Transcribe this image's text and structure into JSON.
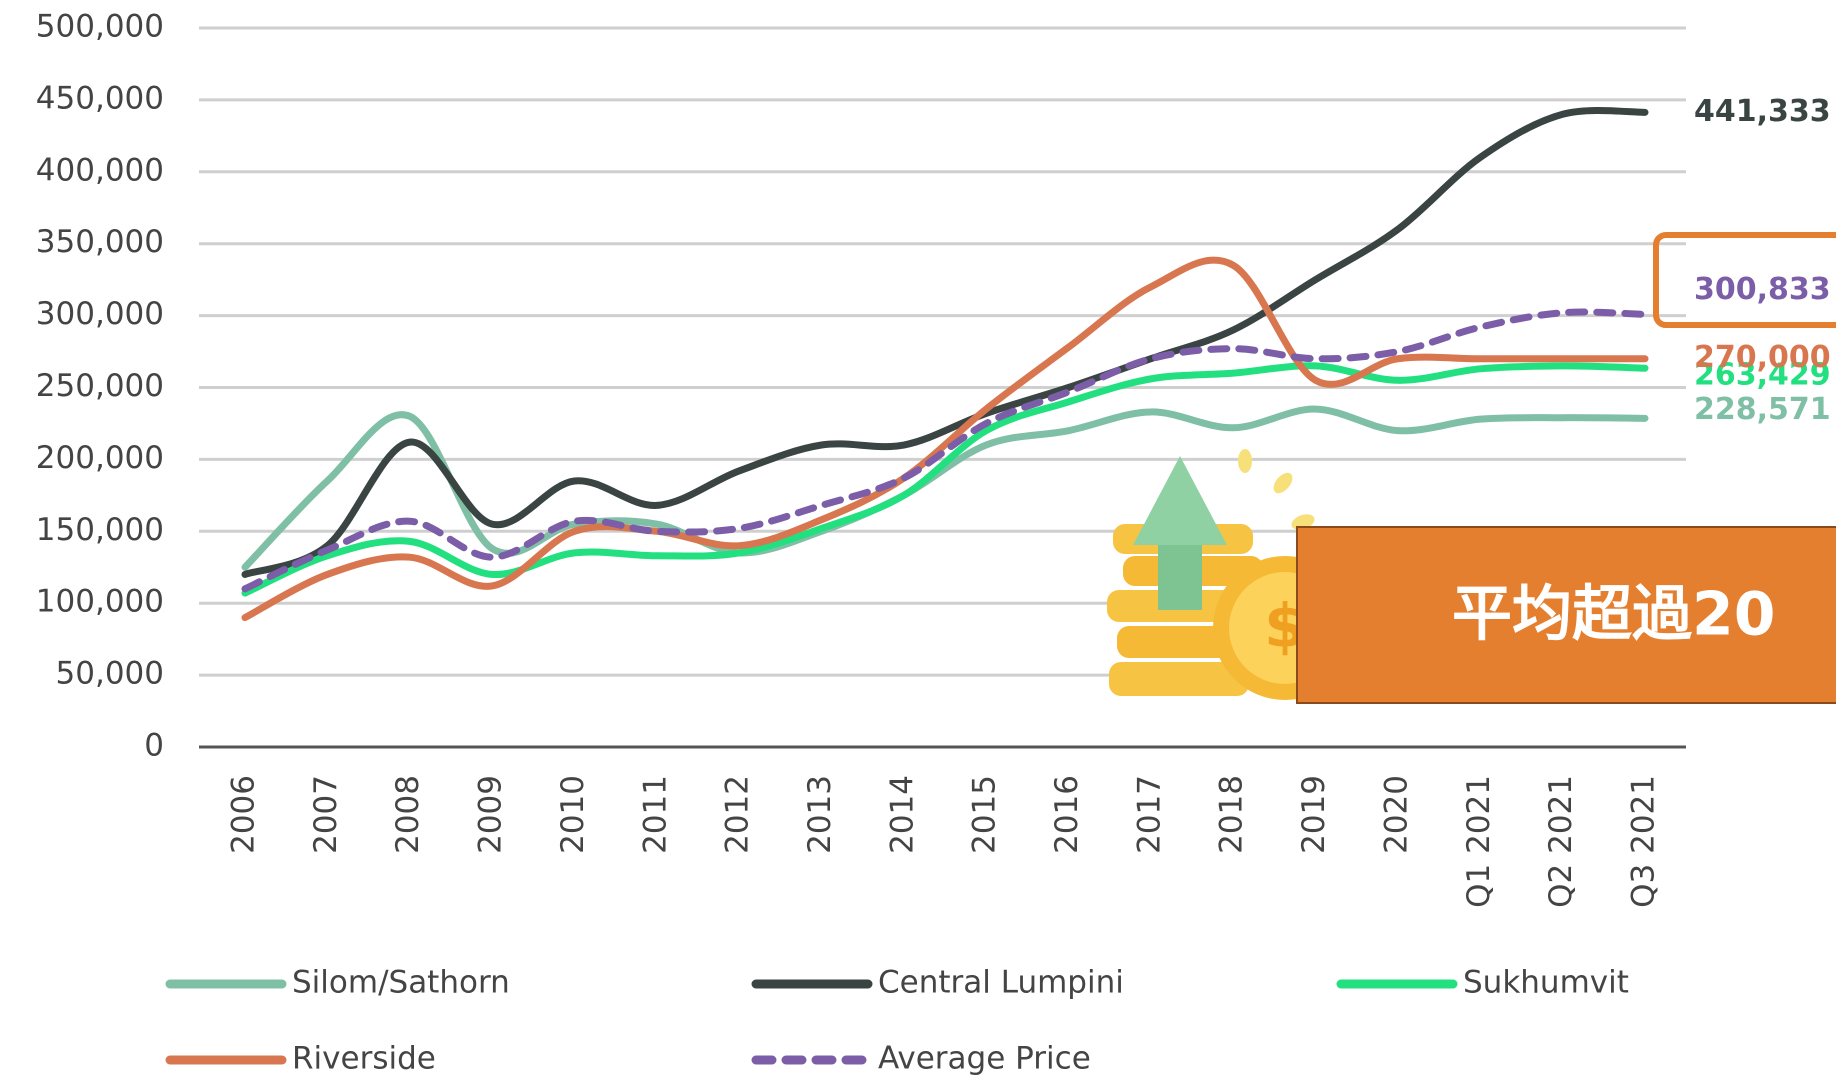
{
  "chart_data": {
    "type": "line",
    "categories": [
      "2006",
      "2007",
      "2008",
      "2009",
      "2010",
      "2011",
      "2012",
      "2013",
      "2014",
      "2015",
      "2016",
      "2017",
      "2018",
      "2019",
      "2020",
      "Q1 2021",
      "Q2 2021",
      "Q3 2021"
    ],
    "series": [
      {
        "name": "Silom/Sathorn",
        "color": "#7fbfa6",
        "values": [
          125000,
          185000,
          230000,
          138000,
          155000,
          155000,
          135000,
          150000,
          175000,
          210000,
          220000,
          233000,
          222000,
          235000,
          220000,
          228000,
          229000,
          228571
        ],
        "value_labels": [
          null,
          null,
          null,
          null,
          null,
          null,
          null,
          null,
          null,
          null,
          null,
          null,
          null,
          null,
          null,
          null,
          null,
          "228,571"
        ]
      },
      {
        "name": "Central Lumpini",
        "color": "#3a4442",
        "values": [
          120000,
          140000,
          212000,
          155000,
          185000,
          168000,
          192000,
          210000,
          210000,
          232000,
          250000,
          270000,
          290000,
          325000,
          360000,
          410000,
          440000,
          441333
        ],
        "value_labels": [
          null,
          null,
          null,
          null,
          null,
          null,
          null,
          null,
          null,
          null,
          null,
          null,
          null,
          null,
          null,
          null,
          null,
          "441,333"
        ]
      },
      {
        "name": "Sukhumvit",
        "color": "#22e07f",
        "values": [
          107000,
          133000,
          143000,
          120000,
          135000,
          133000,
          135000,
          152000,
          175000,
          220000,
          240000,
          256000,
          260000,
          265000,
          255000,
          263000,
          265000,
          263429
        ],
        "value_labels": [
          null,
          null,
          null,
          null,
          null,
          null,
          null,
          null,
          null,
          null,
          null,
          null,
          null,
          null,
          null,
          null,
          null,
          "263,429"
        ]
      },
      {
        "name": "Riverside",
        "color": "#d8774f",
        "values": [
          90000,
          120000,
          132000,
          112000,
          150000,
          150000,
          140000,
          158000,
          187000,
          235000,
          278000,
          320000,
          335000,
          255000,
          270000,
          270000,
          270000,
          270000
        ],
        "value_labels": [
          null,
          null,
          null,
          null,
          null,
          null,
          null,
          null,
          null,
          null,
          null,
          null,
          null,
          null,
          null,
          null,
          null,
          "270,000"
        ]
      },
      {
        "name": "Average Price",
        "color": "#7b5ea7",
        "dashed": true,
        "values": [
          110000,
          137000,
          157000,
          132000,
          157000,
          150000,
          152000,
          168000,
          187000,
          225000,
          247000,
          270000,
          277000,
          270000,
          275000,
          292000,
          302000,
          300833
        ],
        "value_labels": [
          null,
          null,
          null,
          null,
          null,
          null,
          null,
          null,
          null,
          null,
          null,
          null,
          null,
          null,
          null,
          null,
          null,
          "300,833"
        ]
      }
    ],
    "ylim": [
      0,
      500000
    ],
    "yticks": [
      0,
      {
        "value": 50000,
        "label": "50,000"
      },
      {
        "value": 100000,
        "label": "100,000"
      },
      {
        "value": 150000,
        "label": "150,000"
      },
      {
        "value": 200000,
        "label": "200,000"
      },
      {
        "value": 250000,
        "label": "250,000"
      },
      {
        "value": 300000,
        "label": "300,000"
      },
      {
        "value": 350000,
        "label": "350,000"
      },
      {
        "value": 400000,
        "label": "400,000"
      },
      {
        "value": 450000,
        "label": "450,000"
      },
      {
        "value": 500000,
        "label": "500,000"
      }
    ],
    "grid": true,
    "annotation": "平均超過20"
  }
}
